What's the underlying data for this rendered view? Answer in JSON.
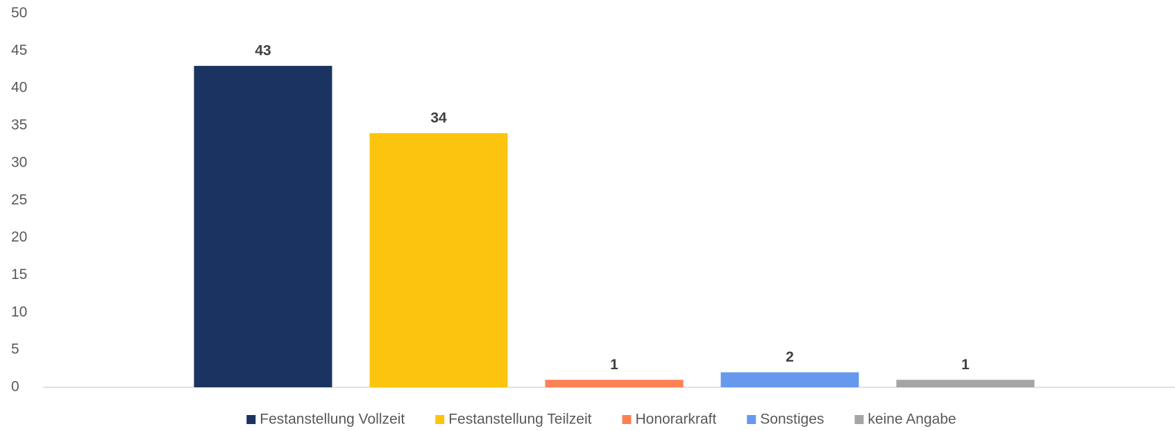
{
  "chart_data": {
    "type": "bar",
    "series": [
      {
        "name": "Festanstellung Vollzeit",
        "color": "#1b3360",
        "values": [
          43
        ]
      },
      {
        "name": "Festanstellung Teilzeit",
        "color": "#fcc40f",
        "values": [
          34
        ]
      },
      {
        "name": "Honorarkraft",
        "color": "#fe8154",
        "values": [
          1
        ]
      },
      {
        "name": "Sonstiges",
        "color": "#6699ee",
        "values": [
          2
        ]
      },
      {
        "name": "keine Angabe",
        "color": "#a5a5a5",
        "values": [
          1
        ]
      }
    ],
    "ylim": [
      0,
      50
    ],
    "yticks": [
      0,
      5,
      10,
      15,
      20,
      25,
      30,
      35,
      40,
      45,
      50
    ],
    "grid": false,
    "legend": "bottom"
  }
}
